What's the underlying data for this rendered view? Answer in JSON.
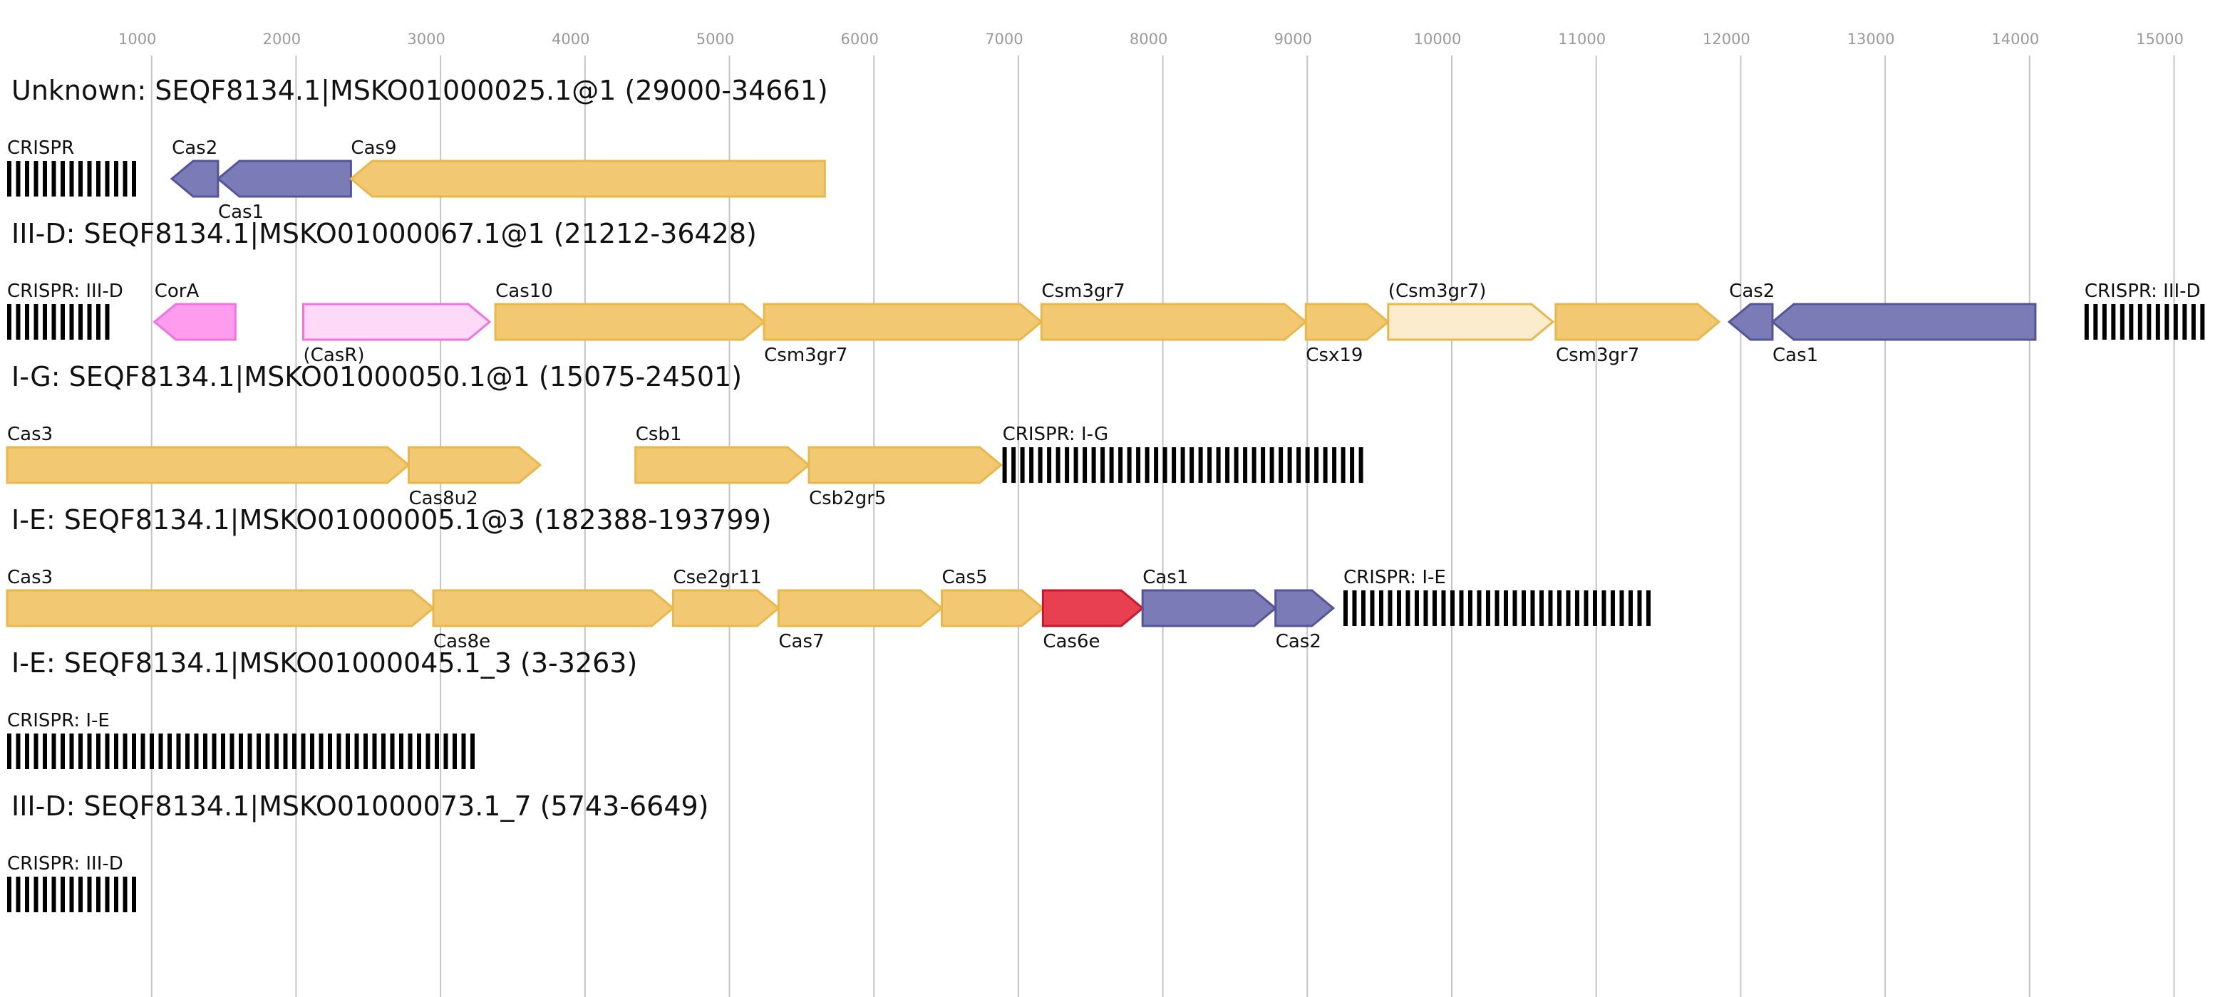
{
  "axis": {
    "ticks": [
      1000,
      2000,
      3000,
      4000,
      5000,
      6000,
      7000,
      8000,
      9000,
      10000,
      11000,
      12000,
      13000,
      14000,
      15000
    ]
  },
  "colors": {
    "cas_core": "#f2c972",
    "cas_core_border": "#e8b84a",
    "adaptation": "#7b7bb8",
    "adaptation_border": "#545499",
    "accessory_solid": "#ff9cee",
    "accessory_solid_border": "#f272e0",
    "accessory_light": "#ffd9f8",
    "accessory_light_border": "#f272e0",
    "putative_light": "#faeccc",
    "putative_light_border": "#e8b84a",
    "cas6e": "#e84050",
    "cas6e_border": "#c41a2c",
    "crispr_array": "#000000"
  },
  "tracks": [
    {
      "title": "Unknown: SEQF8134.1|MSKO01000025.1@1 (29000-34661)",
      "features": [
        {
          "label": "CRISPR",
          "start": 0,
          "end": 930,
          "kind": "crispr",
          "pos": "above"
        },
        {
          "label": "Cas2",
          "start": 1140,
          "end": 1460,
          "strand": -1,
          "kind": "adaptation",
          "pos": "above"
        },
        {
          "label": "Cas1",
          "start": 1460,
          "end": 2380,
          "strand": -1,
          "kind": "adaptation",
          "pos": "below"
        },
        {
          "label": "Cas9",
          "start": 2380,
          "end": 5660,
          "strand": -1,
          "kind": "cas_core",
          "pos": "above"
        }
      ]
    },
    {
      "title": "III-D: SEQF8134.1|MSKO01000067.1@1 (21212-36428)",
      "features": [
        {
          "label": "CRISPR: III-D",
          "start": 0,
          "end": 760,
          "kind": "crispr",
          "pos": "above"
        },
        {
          "label": "CorA",
          "start": 1020,
          "end": 1580,
          "strand": -1,
          "kind": "accessory_solid",
          "pos": "above"
        },
        {
          "label": "(CasR)",
          "start": 2050,
          "end": 3340,
          "strand": 1,
          "kind": "accessory_light",
          "pos": "below"
        },
        {
          "label": "Cas10",
          "start": 3380,
          "end": 5240,
          "strand": 1,
          "kind": "cas_core",
          "pos": "above"
        },
        {
          "label": "Csm3gr7",
          "start": 5240,
          "end": 7160,
          "strand": 1,
          "kind": "cas_core",
          "pos": "below"
        },
        {
          "label": "Csm3gr7",
          "start": 7160,
          "end": 8990,
          "strand": 1,
          "kind": "cas_core",
          "pos": "above"
        },
        {
          "label": "Csx19",
          "start": 8990,
          "end": 9560,
          "strand": 1,
          "kind": "cas_core",
          "pos": "below"
        },
        {
          "label": "(Csm3gr7)",
          "start": 9560,
          "end": 10700,
          "strand": 1,
          "kind": "putative_light",
          "pos": "above"
        },
        {
          "label": "Csm3gr7",
          "start": 10720,
          "end": 11850,
          "strand": 1,
          "kind": "cas_core",
          "pos": "below"
        },
        {
          "label": "Cas2",
          "start": 11920,
          "end": 12220,
          "strand": -1,
          "kind": "adaptation",
          "pos": "above"
        },
        {
          "label": "Cas1",
          "start": 12220,
          "end": 14040,
          "strand": -1,
          "kind": "adaptation",
          "pos": "below"
        },
        {
          "label": "CRISPR: III-D",
          "start": 14380,
          "end": 15210,
          "kind": "crispr",
          "pos": "above"
        }
      ]
    },
    {
      "title": "I-G: SEQF8134.1|MSKO01000050.1@1 (15075-24501)",
      "features": [
        {
          "label": "Cas3",
          "start": 0,
          "end": 2780,
          "strand": 1,
          "kind": "cas_core",
          "pos": "above"
        },
        {
          "label": "Cas8u2",
          "start": 2780,
          "end": 3690,
          "strand": 1,
          "kind": "cas_core",
          "pos": "below"
        },
        {
          "label": "Csb1",
          "start": 4350,
          "end": 5550,
          "strand": 1,
          "kind": "cas_core",
          "pos": "above"
        },
        {
          "label": "Csb2gr5",
          "start": 5550,
          "end": 6880,
          "strand": 1,
          "kind": "cas_core",
          "pos": "below"
        },
        {
          "label": "CRISPR: I-G",
          "start": 6890,
          "end": 9420,
          "kind": "crispr",
          "pos": "above"
        }
      ]
    },
    {
      "title": "I-E: SEQF8134.1|MSKO01000005.1@3 (182388-193799)",
      "features": [
        {
          "label": "Cas3",
          "start": 0,
          "end": 2950,
          "strand": 1,
          "kind": "cas_core",
          "pos": "above"
        },
        {
          "label": "Cas8e",
          "start": 2950,
          "end": 4610,
          "strand": 1,
          "kind": "cas_core",
          "pos": "below"
        },
        {
          "label": "Cse2gr11",
          "start": 4610,
          "end": 5340,
          "strand": 1,
          "kind": "cas_core",
          "pos": "above"
        },
        {
          "label": "Cas7",
          "start": 5340,
          "end": 6470,
          "strand": 1,
          "kind": "cas_core",
          "pos": "below"
        },
        {
          "label": "Cas5",
          "start": 6470,
          "end": 7170,
          "strand": 1,
          "kind": "cas_core",
          "pos": "above"
        },
        {
          "label": "Cas6e",
          "start": 7170,
          "end": 7860,
          "strand": 1,
          "kind": "cas6e",
          "pos": "below"
        },
        {
          "label": "Cas1",
          "start": 7860,
          "end": 8780,
          "strand": 1,
          "kind": "adaptation",
          "pos": "above"
        },
        {
          "label": "Cas2",
          "start": 8780,
          "end": 9180,
          "strand": 1,
          "kind": "adaptation",
          "pos": "below"
        },
        {
          "label": "CRISPR: I-E",
          "start": 9250,
          "end": 11410,
          "kind": "crispr",
          "pos": "above"
        }
      ]
    },
    {
      "title": "I-E: SEQF8134.1|MSKO01000045.1_3 (3-3263)",
      "features": [
        {
          "label": "CRISPR: I-E",
          "start": 0,
          "end": 3260,
          "kind": "crispr",
          "pos": "above"
        }
      ]
    },
    {
      "title": "III-D: SEQF8134.1|MSKO01000073.1_7 (5743-6649)",
      "features": [
        {
          "label": "CRISPR: III-D",
          "start": 0,
          "end": 906,
          "kind": "crispr",
          "pos": "above"
        }
      ]
    }
  ]
}
